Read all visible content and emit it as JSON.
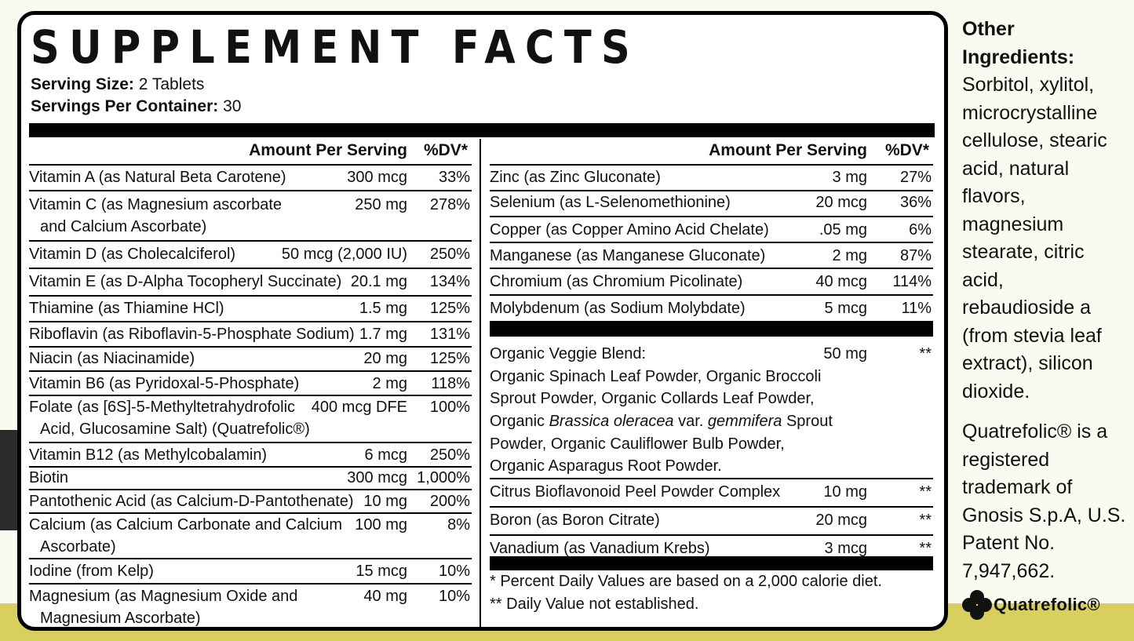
{
  "title": "SUPPLEMENT FACTS",
  "serving": {
    "size_label": "Serving Size:",
    "size_value": " 2 Tablets",
    "per_container_label": "Servings Per Container:",
    "per_container_value": " 30"
  },
  "headers": {
    "amount": "Amount Per Serving",
    "dv": "%DV*"
  },
  "left_rows": [
    {
      "name": "Vitamin A (as Natural Beta Carotene)",
      "amount": "300 mcg",
      "dv": "33%"
    },
    {
      "name": "Vitamin C (as Magnesium ascorbate",
      "name2": "and Calcium Ascorbate)",
      "amount": "250 mg",
      "dv": "278%"
    },
    {
      "name": "Vitamin D (as Cholecalciferol)",
      "amount": "50 mcg (2,000 IU)",
      "dv": "250%"
    },
    {
      "name": "Vitamin E (as D-Alpha Tocopheryl Succinate)",
      "amount": "20.1 mg",
      "dv": "134%"
    },
    {
      "name": "Thiamine (as Thiamine HCl)",
      "amount": "1.5 mg",
      "dv": "125%"
    },
    {
      "name": "Riboflavin (as Riboflavin-5-Phosphate Sodium)",
      "amount": "1.7 mg",
      "dv": "131%"
    },
    {
      "name": "Niacin (as Niacinamide)",
      "amount": "20 mg",
      "dv": "125%"
    },
    {
      "name": "Vitamin B6 (as Pyridoxal-5-Phosphate)",
      "amount": "2 mg",
      "dv": "118%"
    },
    {
      "name": "Folate (as [6S]-5-Methyltetrahydrofolic",
      "name2": "Acid, Glucosamine Salt) (Quatrefolic®)",
      "amount": "400 mcg DFE",
      "dv": "100%"
    },
    {
      "name": "Vitamin B12 (as Methylcobalamin)",
      "amount": "6 mcg",
      "dv": "250%"
    },
    {
      "name": "Biotin",
      "amount": "300 mcg",
      "dv": "1,000%"
    },
    {
      "name": "Pantothenic Acid (as Calcium-D-Pantothenate)",
      "amount": "10 mg",
      "dv": "200%"
    },
    {
      "name": "Calcium (as Calcium Carbonate and Calcium",
      "name2": "Ascorbate)",
      "amount": "100 mg",
      "dv": "8%"
    },
    {
      "name": "Iodine (from Kelp)",
      "amount": "15 mcg",
      "dv": "10%"
    },
    {
      "name": "Magnesium (as Magnesium Oxide and",
      "name2": "Magnesium Ascorbate)",
      "amount": "40 mg",
      "dv": "10%"
    }
  ],
  "right_rows": [
    {
      "name": "Zinc (as Zinc Gluconate)",
      "amount": "3 mg",
      "dv": "27%"
    },
    {
      "name": "Selenium (as L-Selenomethionine)",
      "amount": "20 mcg",
      "dv": "36%"
    },
    {
      "name": "Copper (as Copper Amino Acid Chelate)",
      "amount": ".05 mg",
      "dv": "6%"
    },
    {
      "name": "Manganese (as Manganese Gluconate)",
      "amount": "2 mg",
      "dv": "87%"
    },
    {
      "name": "Chromium (as Chromium Picolinate)",
      "amount": "40 mcg",
      "dv": "114%"
    },
    {
      "name": "Molybdenum (as Sodium Molybdate)",
      "amount": "5 mcg",
      "dv": "11%"
    }
  ],
  "blend": {
    "name": "Organic Veggie Blend:",
    "amount": "50 mg",
    "dv": "**",
    "line1": "Organic Spinach Leaf Powder, Organic Broccoli",
    "line2": "Sprout Powder, Organic Collards Leaf Powder,",
    "line3_a": "Organic ",
    "line3_i1": "Brassica oleracea",
    "line3_b": " var. ",
    "line3_i2": "gemmifera",
    "line3_c": " Sprout",
    "line4": "Powder, Organic Cauliflower Bulb Powder,",
    "line5": "Organic Asparagus Root Powder."
  },
  "right_rows2": [
    {
      "name": "Citrus Bioflavonoid Peel Powder Complex",
      "amount": "10 mg",
      "dv": "**"
    },
    {
      "name": "Boron (as Boron Citrate)",
      "amount": "20 mcg",
      "dv": "**"
    },
    {
      "name": "Vanadium (as Vanadium Krebs)",
      "amount": "3 mcg",
      "dv": "**"
    }
  ],
  "footnotes": {
    "f1": "* Percent Daily Values are based on a 2,000 calorie diet.",
    "f2": "** Daily Value not established."
  },
  "side": {
    "other_heading_1": "Other",
    "other_heading_2": "Ingredients:",
    "other_lines": [
      "Sorbitol, xylitol,",
      "microcrystalline",
      "cellulose, stearic",
      "acid, natural",
      "flavors,",
      "magnesium",
      "stearate, citric",
      "acid,",
      "rebaudioside a",
      "(from stevia leaf",
      "extract), silicon",
      "dioxide."
    ],
    "tm_lines": [
      "Quatrefolic® is a",
      "registered",
      "trademark of",
      "Gnosis S.p.A, U.S.",
      "Patent No.",
      "7,947,662."
    ],
    "logo_text": "Quatrefolic®"
  }
}
